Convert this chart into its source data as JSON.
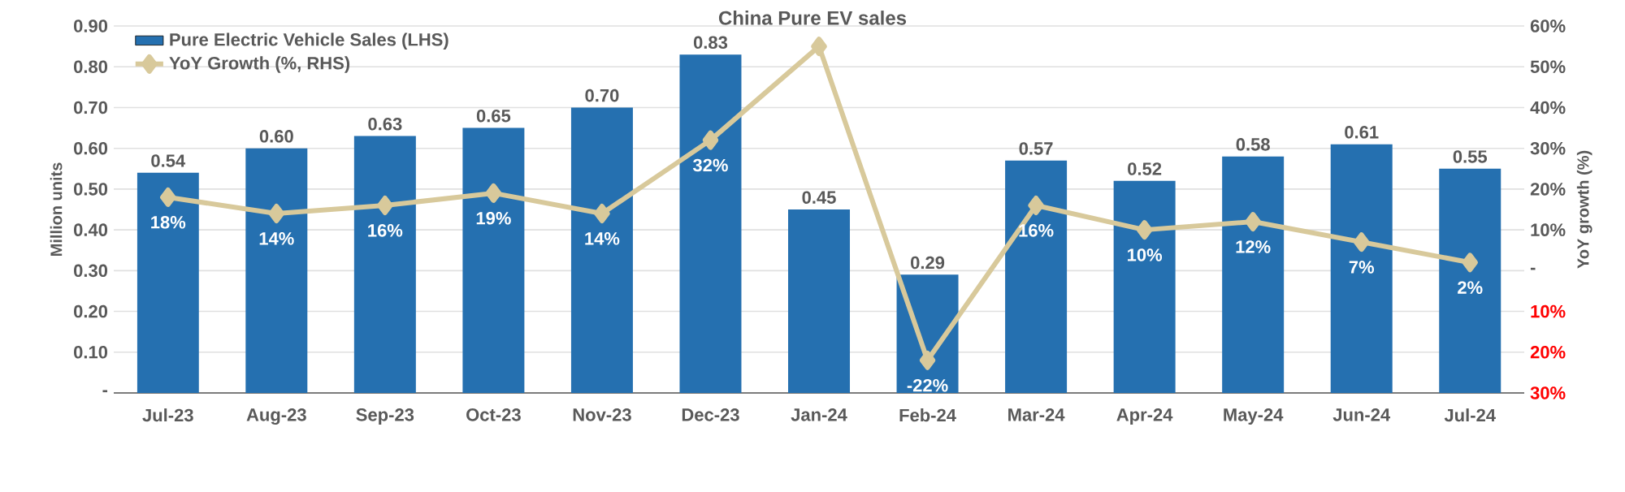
{
  "chart_data": {
    "type": "bar",
    "title": "China Pure EV sales",
    "ylabel": "Million units",
    "y2label": "YoY growth (%)",
    "categories": [
      "Jul-23",
      "Aug-23",
      "Sep-23",
      "Oct-23",
      "Nov-23",
      "Dec-23",
      "Jan-24",
      "Feb-24",
      "Mar-24",
      "Apr-24",
      "May-24",
      "Jun-24",
      "Jul-24"
    ],
    "series": [
      {
        "name": "Pure Electric Vehicle Sales (LHS)",
        "color": "#2570b0",
        "values": [
          0.54,
          0.6,
          0.63,
          0.65,
          0.7,
          0.83,
          0.45,
          0.29,
          0.57,
          0.52,
          0.58,
          0.61,
          0.55
        ],
        "value_labels": [
          "0.54",
          "0.60",
          "0.63",
          "0.65",
          "0.70",
          "0.83",
          "0.45",
          "0.29",
          "0.57",
          "0.52",
          "0.58",
          "0.61",
          "0.55"
        ]
      },
      {
        "name": "YoY Growth (%, RHS)",
        "type": "line",
        "axis": "y2",
        "color": "#d8c99b",
        "marker": "diamond",
        "values": [
          18,
          14,
          16,
          19,
          14,
          32,
          55,
          -22,
          16,
          10,
          12,
          7,
          2
        ],
        "value_labels": [
          "18%",
          "14%",
          "16%",
          "19%",
          "14%",
          "32%",
          null,
          "-22%",
          "16%",
          "10%",
          "12%",
          "7%",
          "2%"
        ]
      }
    ],
    "ylim": [
      0,
      0.9
    ],
    "yticks": [
      {
        "value": 0,
        "label": "-"
      },
      {
        "value": 0.1,
        "label": "0.10"
      },
      {
        "value": 0.2,
        "label": "0.20"
      },
      {
        "value": 0.3,
        "label": "0.30"
      },
      {
        "value": 0.4,
        "label": "0.40"
      },
      {
        "value": 0.5,
        "label": "0.50"
      },
      {
        "value": 0.6,
        "label": "0.60"
      },
      {
        "value": 0.7,
        "label": "0.70"
      },
      {
        "value": 0.8,
        "label": "0.80"
      },
      {
        "value": 0.9,
        "label": "0.90"
      }
    ],
    "y2lim": [
      -30,
      60
    ],
    "y2ticks": [
      {
        "value": -30,
        "label": "30%"
      },
      {
        "value": -20,
        "label": "20%"
      },
      {
        "value": -10,
        "label": "10%"
      },
      {
        "value": 0,
        "label": "-"
      },
      {
        "value": 10,
        "label": "10%"
      },
      {
        "value": 20,
        "label": "20%"
      },
      {
        "value": 30,
        "label": "30%"
      },
      {
        "value": 40,
        "label": "40%"
      },
      {
        "value": 50,
        "label": "50%"
      },
      {
        "value": 60,
        "label": "60%"
      }
    ],
    "grid": "y",
    "legend": "top left"
  }
}
